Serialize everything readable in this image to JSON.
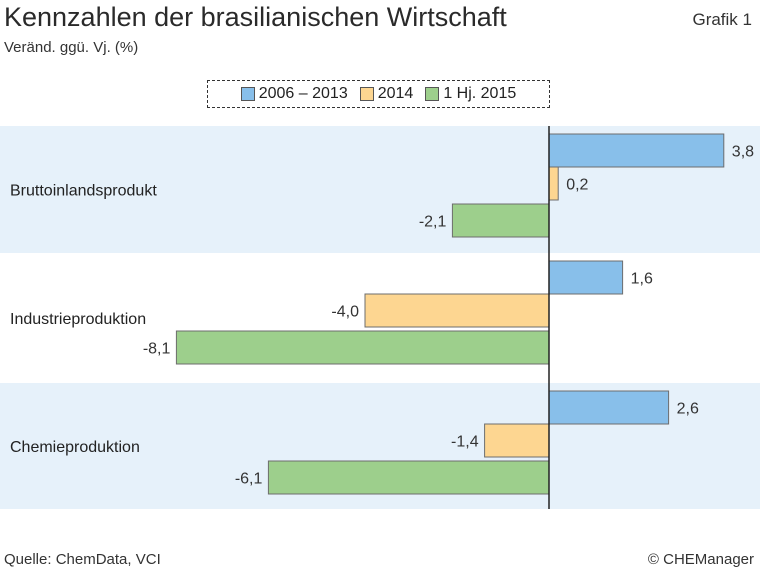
{
  "header": {
    "title": "Kennzahlen der brasilianischen Wirtschaft",
    "subtitle": "Veränd. ggü. Vj. (%)",
    "graphic_label": "Grafik 1"
  },
  "footer": {
    "source": "Quelle: ChemData, VCI",
    "copyright": "© CHEManager"
  },
  "colors": {
    "series_2006_2013": "#88bfea",
    "series_2014": "#fdd691",
    "series_1hj_2015": "#9dcf8c",
    "band_light": "#e6f1fa",
    "axis": "#222222"
  },
  "chart_data": {
    "type": "bar",
    "orientation": "horizontal",
    "title": "Kennzahlen der brasilianischen Wirtschaft",
    "subtitle": "Veränd. ggü. Vj. (%)",
    "categories": [
      "Bruttoinlandsprodukt",
      "Industrieproduktion",
      "Chemieproduktion"
    ],
    "series": [
      {
        "name": "2006 – 2013",
        "values": [
          3.8,
          1.6,
          2.6
        ],
        "labels": [
          "3,8",
          "1,6",
          "2,6"
        ]
      },
      {
        "name": "2014",
        "values": [
          0.2,
          -4.0,
          -1.4
        ],
        "labels": [
          "0,2",
          "-4,0",
          "-1,4"
        ]
      },
      {
        "name": "1 Hj. 2015",
        "values": [
          -2.1,
          -8.1,
          -6.1
        ],
        "labels": [
          "-2,1",
          "-8,1",
          "-6,1"
        ]
      }
    ],
    "legend_position": "top-center",
    "grid": false
  }
}
